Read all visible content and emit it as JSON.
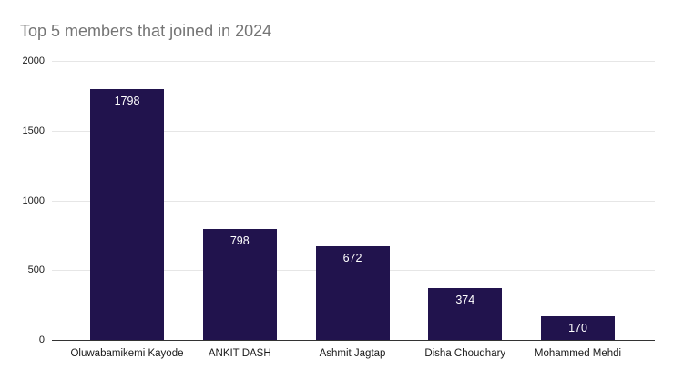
{
  "title": "Top 5 members that joined in 2024",
  "colors": {
    "bar_fill": "#21134d",
    "title_text": "#757575",
    "axis_label_text": "#1a1a1a",
    "gridline": "#e6e6e6",
    "baseline": "#333333",
    "data_label_text": "#ffffff",
    "background": "#ffffff"
  },
  "chart_data": {
    "type": "bar",
    "title": "Top 5 members that joined in 2024",
    "categories": [
      "Oluwabamikemi Kayode",
      "ANKIT DASH",
      "Ashmit Jagtap",
      "Disha Choudhary",
      "Mohammed Mehdi"
    ],
    "values": [
      1798,
      798,
      672,
      374,
      170
    ],
    "data_labels": [
      "1798",
      "798",
      "672",
      "374",
      "170"
    ],
    "xlabel": "",
    "ylabel": "",
    "ylim": [
      0,
      2000
    ],
    "yticks": [
      0,
      500,
      1000,
      1500,
      2000
    ],
    "grid": true,
    "legend": "none",
    "bar_color": "#21134d"
  }
}
